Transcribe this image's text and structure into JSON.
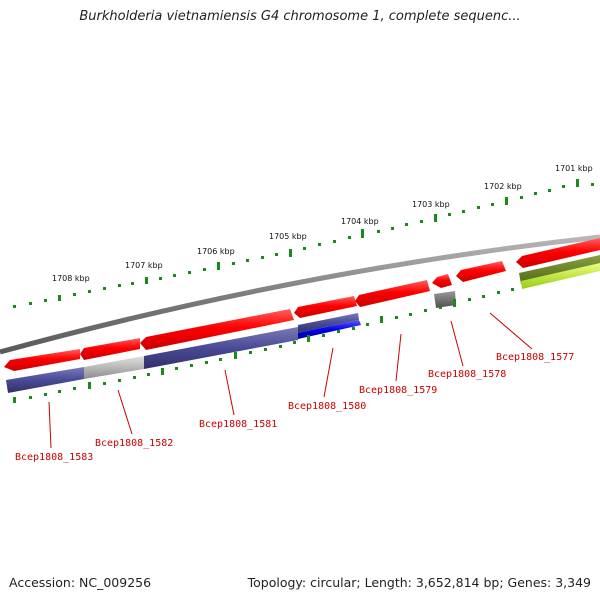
{
  "title": "Burkholderia vietnamiensis G4 chromosome 1, complete sequenc...",
  "footer": {
    "accession": "Accession: NC_009256",
    "summary": "Topology: circular; Length: 3,652,814 bp; Genes: 3,349"
  },
  "scale_labels": [
    "1701 kbp",
    "1702 kbp",
    "1703 kbp",
    "1704 kbp",
    "1705 kbp",
    "1706 kbp",
    "1707 kbp",
    "1708 kbp"
  ],
  "gene_labels": [
    "Bcep1808_1577",
    "Bcep1808_1578",
    "Bcep1808_1579",
    "Bcep1808_1580",
    "Bcep1808_1581",
    "Bcep1808_1582",
    "Bcep1808_1583"
  ],
  "colors": {
    "forward_cds": "#ff0000",
    "reverse_cds": "#4a4a96",
    "tick": "#1a8a1a",
    "backbone": "#7d7d7d",
    "label": "#cc0000"
  }
}
